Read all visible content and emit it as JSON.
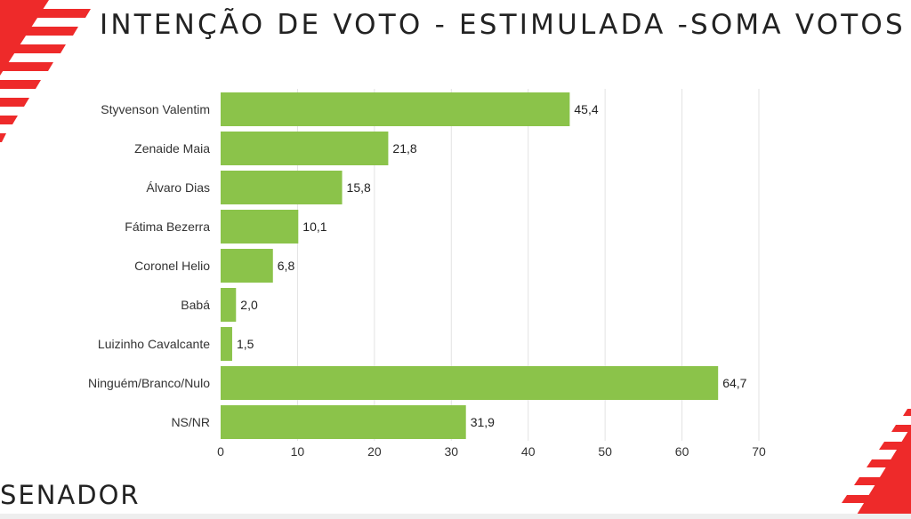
{
  "title": "INTENÇÃO DE VOTO - ESTIMULADA -SOMA VOTOS",
  "footer": "SENADOR",
  "colors": {
    "bar": "#8bc34a",
    "accent": "#ee2a2a",
    "grid": "#e3e3e3"
  },
  "chart_data": {
    "type": "bar",
    "orientation": "horizontal",
    "title": "INTENÇÃO DE VOTO - ESTIMULADA -SOMA VOTOS",
    "categories": [
      "Styvenson Valentim",
      "Zenaide Maia",
      "Álvaro Dias",
      "Fátima Bezerra",
      "Coronel Helio",
      "Babá",
      "Luizinho Cavalcante",
      "Ninguém/Branco/Nulo",
      "NS/NR"
    ],
    "values": [
      45.4,
      21.8,
      15.8,
      10.1,
      6.8,
      2.0,
      1.5,
      64.7,
      31.9
    ],
    "value_labels": [
      "45,4",
      "21,8",
      "15,8",
      "10,1",
      "6,8",
      "2,0",
      "1,5",
      "64,7",
      "31,9"
    ],
    "xlim": [
      0,
      70
    ],
    "xticks": [
      0,
      10,
      20,
      30,
      40,
      50,
      60,
      70
    ],
    "grid": true,
    "xlabel": "",
    "ylabel": ""
  }
}
